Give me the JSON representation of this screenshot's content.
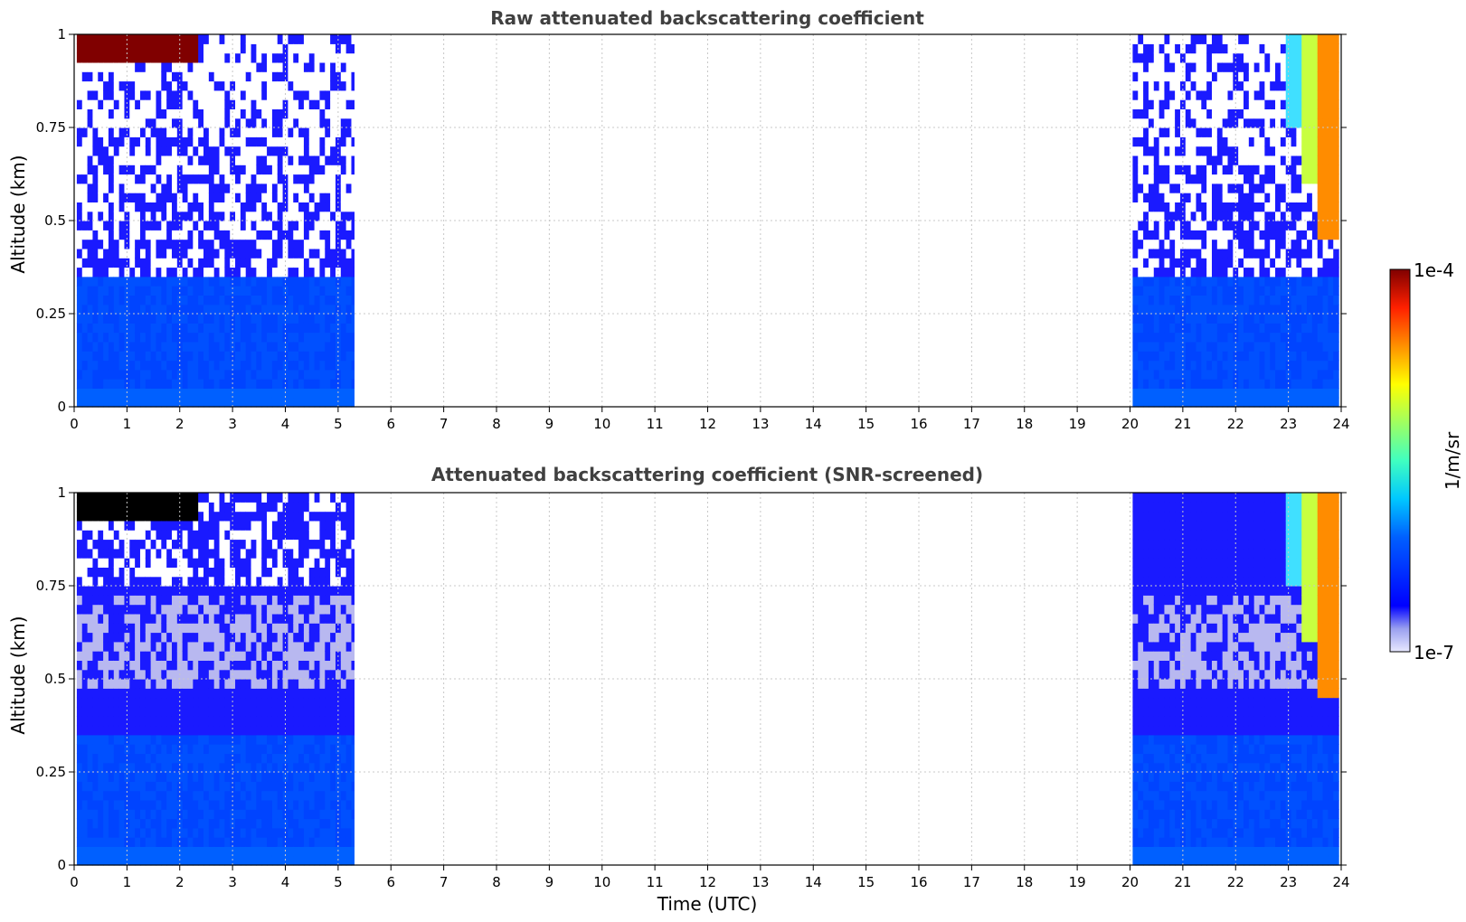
{
  "chart_data": [
    {
      "type": "heatmap",
      "title": "Raw attenuated backscattering coefficient",
      "xlabel": "",
      "ylabel": "Altitude (km)",
      "xlim": [
        0,
        24
      ],
      "ylim": [
        0,
        1
      ],
      "x_ticks": [
        "0",
        "1",
        "2",
        "3",
        "4",
        "5",
        "6",
        "7",
        "8",
        "9",
        "10",
        "11",
        "12",
        "13",
        "14",
        "15",
        "16",
        "17",
        "18",
        "19",
        "20",
        "21",
        "22",
        "23",
        "24"
      ],
      "y_ticks": [
        "0",
        "0.25",
        "0.5",
        "0.75",
        "1"
      ],
      "grid": true,
      "screened": false,
      "data_segments": [
        {
          "time_start": 0.05,
          "time_end": 5.3
        },
        {
          "time_start": 20.05,
          "time_end": 23.95
        }
      ],
      "data_gaps_utc": [
        [
          5.3,
          20.05
        ]
      ]
    },
    {
      "type": "heatmap",
      "title": "Attenuated backscattering coefficient (SNR-screened)",
      "xlabel": "Time (UTC)",
      "ylabel": "Altitude (km)",
      "xlim": [
        0,
        24
      ],
      "ylim": [
        0,
        1
      ],
      "x_ticks": [
        "0",
        "1",
        "2",
        "3",
        "4",
        "5",
        "6",
        "7",
        "8",
        "9",
        "10",
        "11",
        "12",
        "13",
        "14",
        "15",
        "16",
        "17",
        "18",
        "19",
        "20",
        "21",
        "22",
        "23",
        "24"
      ],
      "y_ticks": [
        "0",
        "0.25",
        "0.5",
        "0.75",
        "1"
      ],
      "grid": true,
      "screened": true,
      "data_segments": [
        {
          "time_start": 0.05,
          "time_end": 5.3
        },
        {
          "time_start": 20.05,
          "time_end": 23.95
        }
      ],
      "data_gaps_utc": [
        [
          5.3,
          20.05
        ]
      ]
    }
  ],
  "colorbar": {
    "label": "1/m/sr",
    "max_label": "1e-4",
    "min_label": "1e-7",
    "scale": "log",
    "colormap": "jet",
    "range": [
      1e-07,
      0.0001
    ]
  },
  "colors": {
    "title": "#404040",
    "grid": "#c8c8c8",
    "axes": "#000000"
  }
}
